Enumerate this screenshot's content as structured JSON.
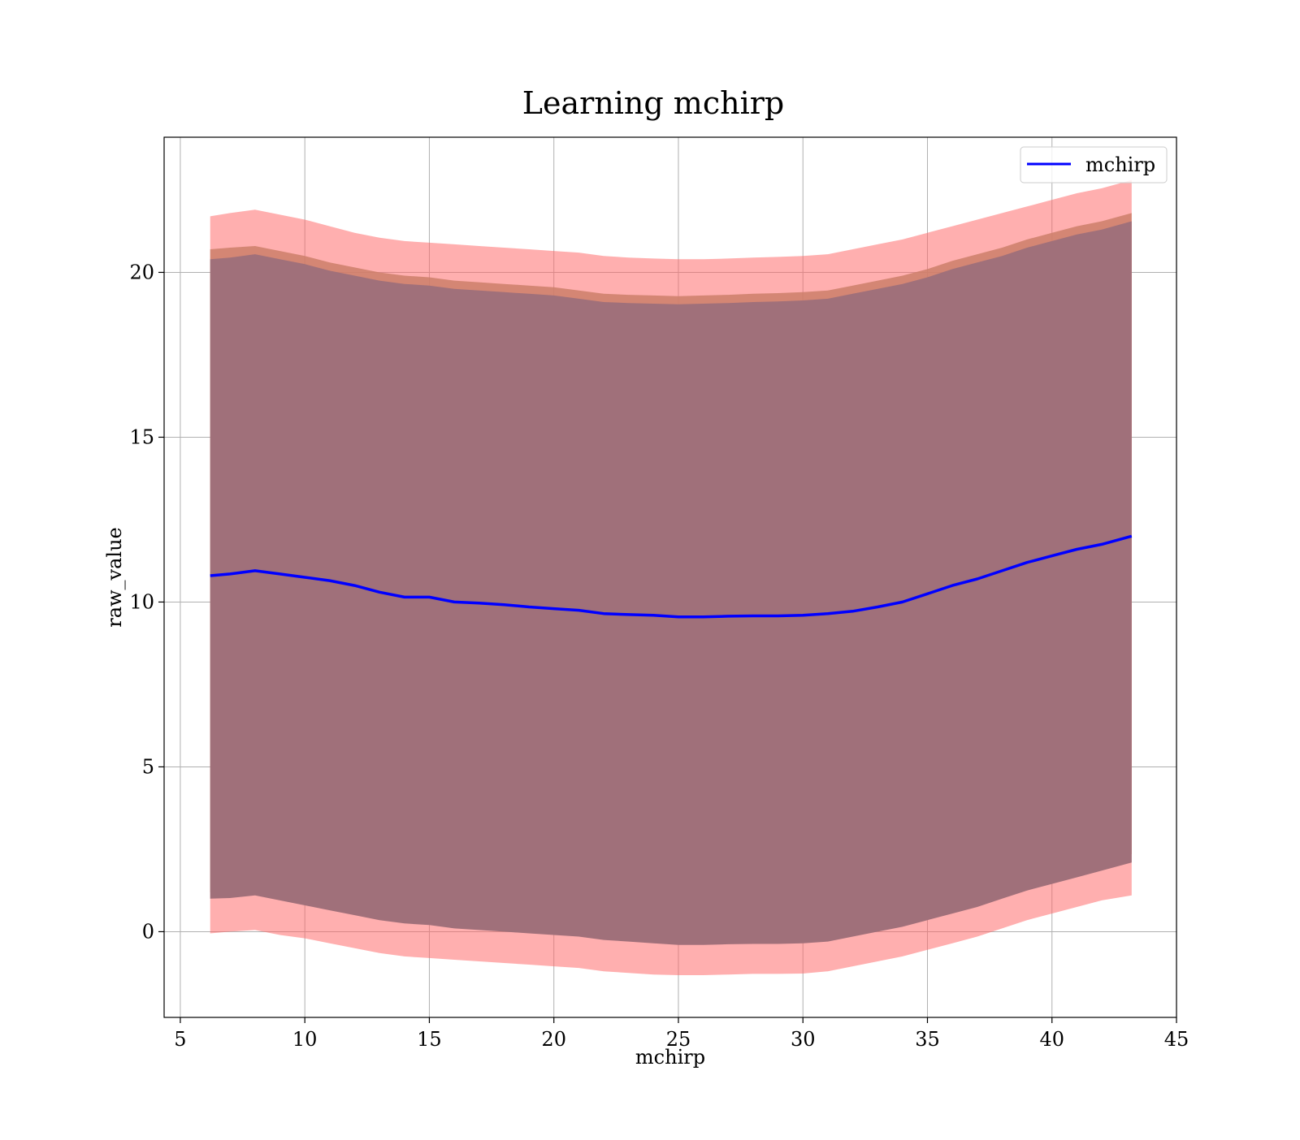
{
  "chart_data": {
    "type": "line",
    "title": "Learning mchirp",
    "xlabel": "mchirp",
    "ylabel": "raw_value",
    "xlim": [
      4.35,
      45
    ],
    "ylim": [
      -2.6,
      24.1
    ],
    "xticks": [
      5,
      10,
      15,
      20,
      25,
      30,
      35,
      40,
      45
    ],
    "yticks": [
      0,
      5,
      10,
      15,
      20
    ],
    "grid": true,
    "legend": {
      "position": "top-right",
      "entries": [
        "mchirp"
      ]
    },
    "colors": {
      "line": "#0000ff",
      "band_outer": "#ff6666",
      "band_mid": "#cd7f6a",
      "band_inner": "#a0707a",
      "grid": "#b0b0b0",
      "axes": "#000000"
    },
    "series": [
      {
        "name": "mchirp",
        "x": [
          6.2,
          7,
          8,
          9,
          10,
          11,
          12,
          13,
          14,
          15,
          16,
          17,
          18,
          19,
          20,
          21,
          22,
          23,
          24,
          25,
          26,
          27,
          28,
          29,
          30,
          31,
          32,
          33,
          34,
          35,
          36,
          37,
          38,
          39,
          40,
          41,
          42,
          43.2
        ],
        "y": [
          10.8,
          10.85,
          10.95,
          10.85,
          10.75,
          10.65,
          10.5,
          10.3,
          10.15,
          10.15,
          10.0,
          9.97,
          9.92,
          9.85,
          9.8,
          9.75,
          9.65,
          9.62,
          9.6,
          9.55,
          9.55,
          9.57,
          9.58,
          9.58,
          9.6,
          9.65,
          9.72,
          9.85,
          10.0,
          10.25,
          10.5,
          10.7,
          10.95,
          11.2,
          11.4,
          11.6,
          11.75,
          12.0
        ],
        "band_outer_upper": [
          21.7,
          21.8,
          21.9,
          21.75,
          21.6,
          21.4,
          21.2,
          21.05,
          20.95,
          20.9,
          20.85,
          20.8,
          20.75,
          20.7,
          20.65,
          20.6,
          20.5,
          20.45,
          20.42,
          20.4,
          20.4,
          20.42,
          20.45,
          20.47,
          20.5,
          20.55,
          20.7,
          20.85,
          21.0,
          21.2,
          21.4,
          21.6,
          21.8,
          22.0,
          22.2,
          22.4,
          22.55,
          22.8
        ],
        "band_outer_lower": [
          -0.05,
          0.0,
          0.05,
          -0.1,
          -0.2,
          -0.35,
          -0.5,
          -0.65,
          -0.75,
          -0.8,
          -0.85,
          -0.9,
          -0.95,
          -1.0,
          -1.05,
          -1.1,
          -1.2,
          -1.25,
          -1.3,
          -1.32,
          -1.32,
          -1.3,
          -1.28,
          -1.28,
          -1.27,
          -1.2,
          -1.05,
          -0.9,
          -0.75,
          -0.55,
          -0.35,
          -0.15,
          0.1,
          0.35,
          0.55,
          0.75,
          0.95,
          1.1
        ],
        "band_mid_upper": [
          20.7,
          20.75,
          20.8,
          20.65,
          20.5,
          20.3,
          20.15,
          20.0,
          19.9,
          19.85,
          19.75,
          19.7,
          19.65,
          19.6,
          19.55,
          19.45,
          19.35,
          19.32,
          19.3,
          19.28,
          19.3,
          19.32,
          19.35,
          19.37,
          19.4,
          19.45,
          19.6,
          19.75,
          19.9,
          20.1,
          20.35,
          20.55,
          20.75,
          21.0,
          21.2,
          21.4,
          21.55,
          21.8
        ],
        "band_mid_lower": [
          1.2,
          1.22,
          1.3,
          1.15,
          1.0,
          0.85,
          0.7,
          0.55,
          0.45,
          0.4,
          0.3,
          0.25,
          0.2,
          0.15,
          0.1,
          0.05,
          -0.05,
          -0.1,
          -0.15,
          -0.2,
          -0.2,
          -0.18,
          -0.17,
          -0.17,
          -0.15,
          -0.1,
          0.05,
          0.2,
          0.35,
          0.55,
          0.75,
          0.95,
          1.2,
          1.45,
          1.65,
          1.85,
          2.05,
          2.35
        ],
        "band_inner_upper": [
          20.4,
          20.45,
          20.55,
          20.4,
          20.25,
          20.05,
          19.9,
          19.75,
          19.65,
          19.6,
          19.5,
          19.45,
          19.4,
          19.35,
          19.3,
          19.2,
          19.1,
          19.07,
          19.05,
          19.03,
          19.05,
          19.07,
          19.1,
          19.12,
          19.15,
          19.2,
          19.35,
          19.5,
          19.65,
          19.85,
          20.1,
          20.3,
          20.5,
          20.75,
          20.95,
          21.15,
          21.3,
          21.55
        ],
        "band_inner_lower": [
          1.0,
          1.02,
          1.1,
          0.95,
          0.8,
          0.65,
          0.5,
          0.35,
          0.25,
          0.2,
          0.1,
          0.05,
          0.0,
          -0.05,
          -0.1,
          -0.15,
          -0.25,
          -0.3,
          -0.35,
          -0.4,
          -0.4,
          -0.38,
          -0.37,
          -0.37,
          -0.35,
          -0.3,
          -0.15,
          0.0,
          0.15,
          0.35,
          0.55,
          0.75,
          1.0,
          1.25,
          1.45,
          1.65,
          1.85,
          2.1
        ]
      }
    ]
  }
}
